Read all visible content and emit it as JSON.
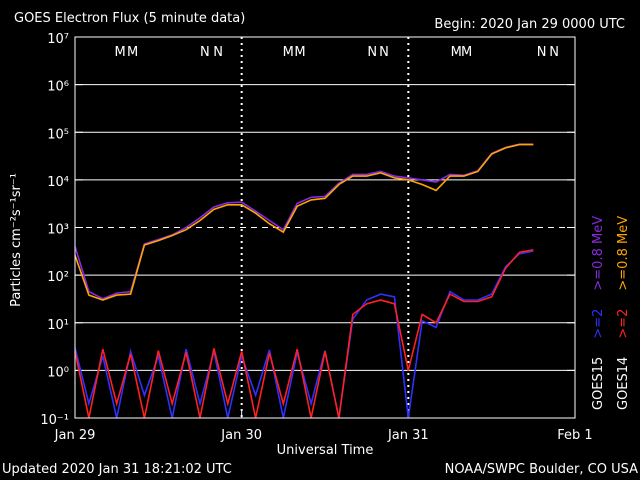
{
  "chart_data": {
    "type": "line",
    "title": "GOES Electron Flux (5 minute data)",
    "subtitle": "Begin: 2020 Jan 29 0000 UTC",
    "y_label": "Particles cm⁻²s⁻¹sr⁻¹",
    "x_label": "Universal Time",
    "footer_left": "Updated 2020 Jan 31 18:21:02 UTC",
    "footer_right": "NOAA/SWPC Boulder, CO USA",
    "y_log": true,
    "grid": true,
    "threshold": 1000,
    "xlim": [
      0,
      72
    ],
    "xticks": [
      {
        "value": 0,
        "label": "Jan 29"
      },
      {
        "value": 24,
        "label": "Jan 30"
      },
      {
        "value": 48,
        "label": "Jan 31"
      },
      {
        "value": 72,
        "label": "Feb 1"
      }
    ],
    "ylim": [
      0.1,
      10000000
    ],
    "yticks": [
      {
        "value": 0.1,
        "label": "10⁻¹"
      },
      {
        "value": 1,
        "label": "10⁰"
      },
      {
        "value": 10,
        "label": "10¹"
      },
      {
        "value": 100,
        "label": "10²"
      },
      {
        "value": 1000,
        "label": "10³"
      },
      {
        "value": 10000,
        "label": "10⁴"
      },
      {
        "value": 100000,
        "label": "10⁵"
      },
      {
        "value": 1000000,
        "label": "10⁶"
      },
      {
        "value": 10000000,
        "label": "10⁷"
      }
    ],
    "legend_columns": [
      "GOES15",
      "GOES14"
    ],
    "x": [
      0,
      2,
      4,
      6,
      8,
      10,
      12,
      14,
      16,
      18,
      20,
      22,
      24,
      26,
      28,
      30,
      32,
      34,
      36,
      38,
      40,
      42,
      44,
      46,
      48,
      50,
      52,
      54,
      56,
      58,
      60,
      62,
      64,
      66
    ],
    "series": [
      {
        "name": ">=2",
        "color": "#3030ff",
        "values": [
          3,
          0.2,
          2,
          0.1,
          2.5,
          0.3,
          2,
          0.1,
          2.8,
          0.2,
          2.5,
          0.1,
          2,
          0.3,
          2.7,
          0.1,
          2.4,
          0.2,
          2.6,
          0.1,
          12,
          30,
          40,
          35,
          0.1,
          11,
          8,
          45,
          30,
          30,
          40,
          150,
          280,
          320
        ]
      },
      {
        "name": ">=0.8 MeV",
        "color": "#8a2be2",
        "values": [
          400,
          45,
          32,
          42,
          45,
          450,
          560,
          700,
          1000,
          1600,
          2700,
          3300,
          3400,
          2200,
          1400,
          900,
          3200,
          4300,
          4500,
          8500,
          13000,
          13000,
          15000,
          12000,
          11000,
          10000,
          9000,
          13000,
          12500,
          15500,
          36000,
          48000,
          56000,
          56000
        ]
      },
      {
        "name": ">=2",
        "color": "#ff2020",
        "values": [
          2.5,
          0.1,
          2.8,
          0.2,
          2.2,
          0.1,
          2.6,
          0.2,
          2.4,
          0.1,
          2.9,
          0.2,
          2.5,
          0.1,
          2.3,
          0.2,
          2.8,
          0.1,
          2.5,
          0.1,
          15,
          25,
          30,
          25,
          1,
          15,
          10,
          40,
          28,
          28,
          35,
          140,
          300,
          340
        ]
      },
      {
        "name": ">=0.8 MeV",
        "color": "#ffa500",
        "values": [
          260,
          38,
          30,
          38,
          40,
          430,
          530,
          680,
          900,
          1400,
          2400,
          3000,
          3000,
          2000,
          1200,
          800,
          2800,
          3800,
          4100,
          8000,
          12000,
          12000,
          14000,
          11000,
          10000,
          8000,
          6000,
          12000,
          12000,
          15000,
          35000,
          47000,
          55000,
          55000
        ]
      }
    ],
    "markers": [
      {
        "text": "M",
        "x": 6.5,
        "color": "#ff2020"
      },
      {
        "text": "M",
        "x": 8.3,
        "color": "#3030ff"
      },
      {
        "text": "N",
        "x": 18.7,
        "color": "#ff2020"
      },
      {
        "text": "N",
        "x": 20.6,
        "color": "#3030ff"
      },
      {
        "text": "M",
        "x": 30.7,
        "color": "#ff2020"
      },
      {
        "text": "M",
        "x": 32.4,
        "color": "#3030ff"
      },
      {
        "text": "N",
        "x": 42.8,
        "color": "#ff2020"
      },
      {
        "text": "N",
        "x": 44.5,
        "color": "#3030ff"
      },
      {
        "text": "M",
        "x": 54.9,
        "color": "#ff2020"
      },
      {
        "text": "M",
        "x": 56.4,
        "color": "#3030ff"
      },
      {
        "text": "N",
        "x": 67.2,
        "color": "#ff2020"
      },
      {
        "text": "N",
        "x": 69.0,
        "color": "#3030ff"
      }
    ]
  }
}
